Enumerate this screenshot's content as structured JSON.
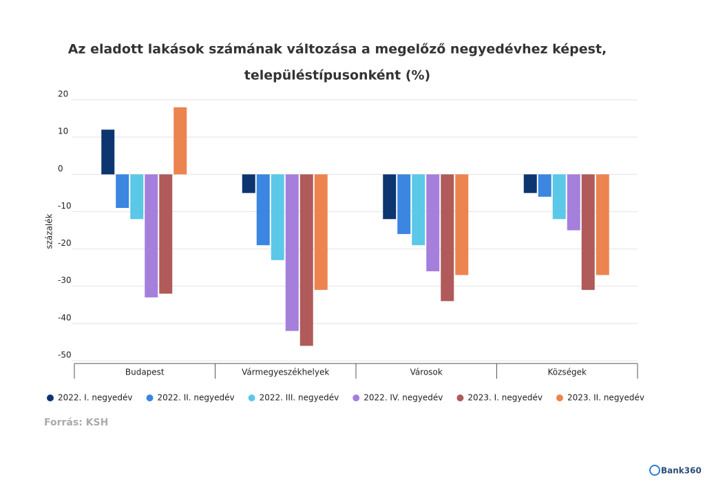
{
  "chart_data": {
    "type": "bar",
    "title": [
      "Az eladott lakások számának változása a megelőző negyedévhez képest,",
      "településtípusonként (%)"
    ],
    "ylabel": "százalék",
    "categories": [
      "Budapest",
      "Vármegyeszékhelyek",
      "Városok",
      "Községek"
    ],
    "series": [
      {
        "name": "2022. I. negyedév",
        "color": "#0d3570",
        "values": [
          12,
          -5,
          -12,
          -5
        ]
      },
      {
        "name": "2022. II. negyedév",
        "color": "#3a86e0",
        "values": [
          -9,
          -19,
          -16,
          -6
        ]
      },
      {
        "name": "2022. III. negyedév",
        "color": "#5bc8e8",
        "values": [
          -12,
          -23,
          -19,
          -12
        ]
      },
      {
        "name": "2022. IV. negyedév",
        "color": "#a57fdc",
        "values": [
          -33,
          -42,
          -26,
          -15
        ]
      },
      {
        "name": "2023. I. negyedév",
        "color": "#b05a5a",
        "values": [
          -32,
          -46,
          -34,
          -31
        ]
      },
      {
        "name": "2023. II. negyedév",
        "color": "#ec8450",
        "values": [
          18,
          -31,
          -27,
          -27
        ]
      }
    ],
    "ylim": [
      -50,
      20
    ],
    "yticks": [
      -50,
      -40,
      -30,
      -20,
      -10,
      0,
      10,
      20
    ],
    "grid": true,
    "legend": "bottom",
    "source": "Forrás: KSH",
    "watermark": "Bank360"
  }
}
